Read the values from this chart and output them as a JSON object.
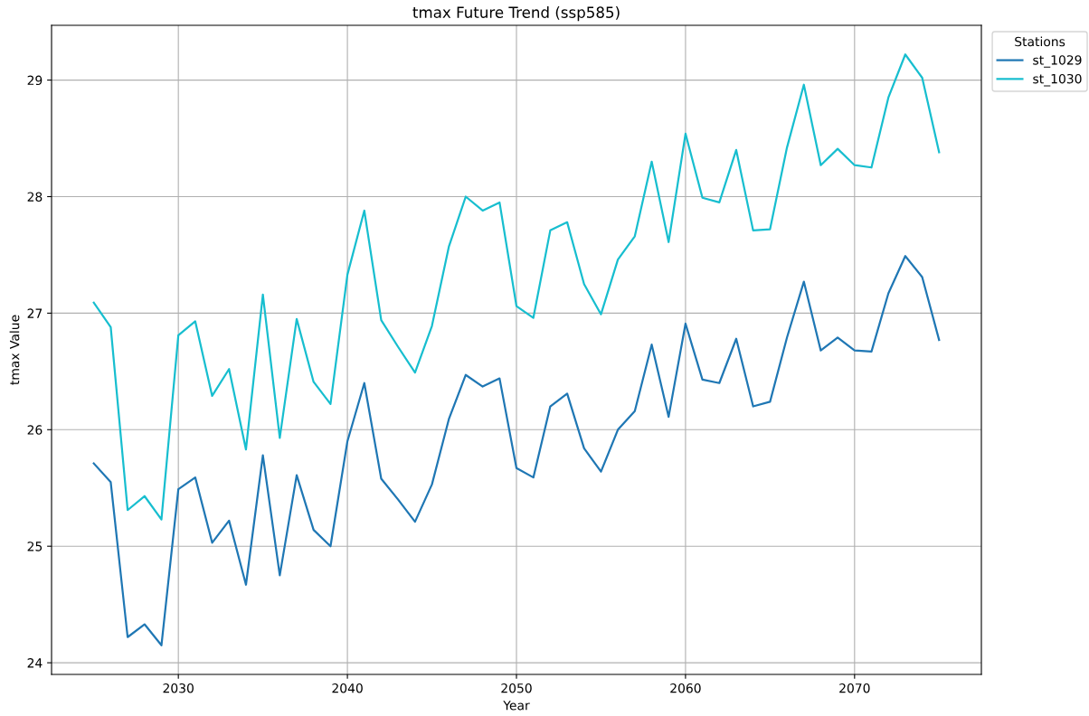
{
  "chart_data": {
    "type": "line",
    "title": "tmax Future Trend (ssp585)",
    "xlabel": "Year",
    "ylabel": "tmax Value",
    "legend_title": "Stations",
    "x": [
      2025,
      2026,
      2027,
      2028,
      2029,
      2030,
      2031,
      2032,
      2033,
      2034,
      2035,
      2036,
      2037,
      2038,
      2039,
      2040,
      2041,
      2042,
      2043,
      2044,
      2045,
      2046,
      2047,
      2048,
      2049,
      2050,
      2051,
      2052,
      2053,
      2054,
      2055,
      2056,
      2057,
      2058,
      2059,
      2060,
      2061,
      2062,
      2063,
      2064,
      2065,
      2066,
      2067,
      2068,
      2069,
      2070,
      2071,
      2072,
      2073,
      2074,
      2075
    ],
    "series": [
      {
        "name": "st_1029",
        "color": "#1f77b4",
        "values": [
          25.71,
          25.55,
          24.22,
          24.33,
          24.15,
          25.49,
          25.59,
          25.03,
          25.22,
          24.67,
          25.78,
          24.75,
          25.61,
          25.14,
          25.0,
          25.9,
          26.4,
          25.58,
          25.4,
          25.21,
          25.53,
          26.09,
          26.47,
          26.37,
          26.44,
          25.67,
          25.59,
          26.2,
          26.31,
          25.84,
          25.64,
          26.0,
          26.16,
          26.73,
          26.11,
          26.91,
          26.43,
          26.4,
          26.78,
          26.2,
          26.24,
          26.79,
          27.27,
          26.68,
          26.79,
          26.68,
          26.67,
          27.17,
          27.49,
          27.31,
          26.77
        ]
      },
      {
        "name": "st_1030",
        "color": "#17becf",
        "values": [
          27.09,
          26.88,
          25.31,
          25.43,
          25.23,
          26.81,
          26.93,
          26.29,
          26.52,
          25.83,
          27.16,
          25.93,
          26.95,
          26.41,
          26.22,
          27.33,
          27.88,
          26.94,
          26.71,
          26.49,
          26.89,
          27.57,
          28.0,
          27.88,
          27.95,
          27.06,
          26.96,
          27.71,
          27.78,
          27.25,
          26.99,
          27.46,
          27.66,
          28.3,
          27.61,
          28.54,
          27.99,
          27.95,
          28.4,
          27.71,
          27.72,
          28.42,
          28.96,
          28.27,
          28.41,
          28.27,
          28.25,
          28.85,
          29.22,
          29.02,
          28.38
        ]
      }
    ],
    "xlim": [
      2022.5,
      2077.5
    ],
    "xticks": [
      2030,
      2040,
      2050,
      2060,
      2070
    ],
    "ylim": [
      23.9,
      29.47
    ],
    "yticks": [
      24,
      25,
      26,
      27,
      28,
      29
    ],
    "grid": true,
    "legend": "top right",
    "marker": "none",
    "line_style": "solid"
  }
}
